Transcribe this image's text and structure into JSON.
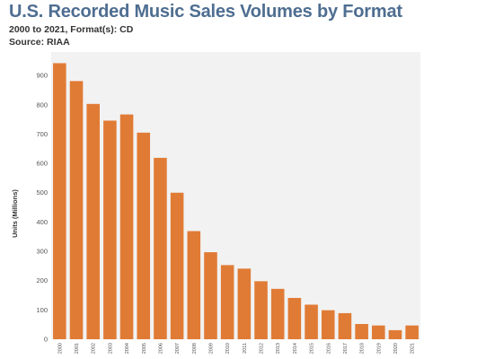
{
  "chart_data": {
    "type": "bar",
    "title": "U.S. Recorded Music Sales Volumes by Format",
    "subtitle": "2000 to 2021, Format(s): CD",
    "source": "Source: RIAA",
    "xlabel": "",
    "ylabel": "Units (Millions)",
    "ylim": [
      0,
      980
    ],
    "yticks": [
      0,
      100,
      200,
      300,
      400,
      500,
      600,
      700,
      800,
      900
    ],
    "grid": false,
    "bar_color": "#e07b35",
    "plot_background": "#f2f2f2",
    "categories": [
      "2000",
      "2001",
      "2002",
      "2003",
      "2004",
      "2005",
      "2006",
      "2007",
      "2008",
      "2009",
      "2010",
      "2011",
      "2012",
      "2013",
      "2014",
      "2015",
      "2016",
      "2017",
      "2018",
      "2019",
      "2020",
      "2021"
    ],
    "values": [
      942,
      881,
      803,
      746,
      767,
      705,
      619,
      500,
      369,
      297,
      253,
      241,
      198,
      172,
      141,
      118,
      99,
      89,
      52,
      47,
      31,
      47
    ]
  }
}
